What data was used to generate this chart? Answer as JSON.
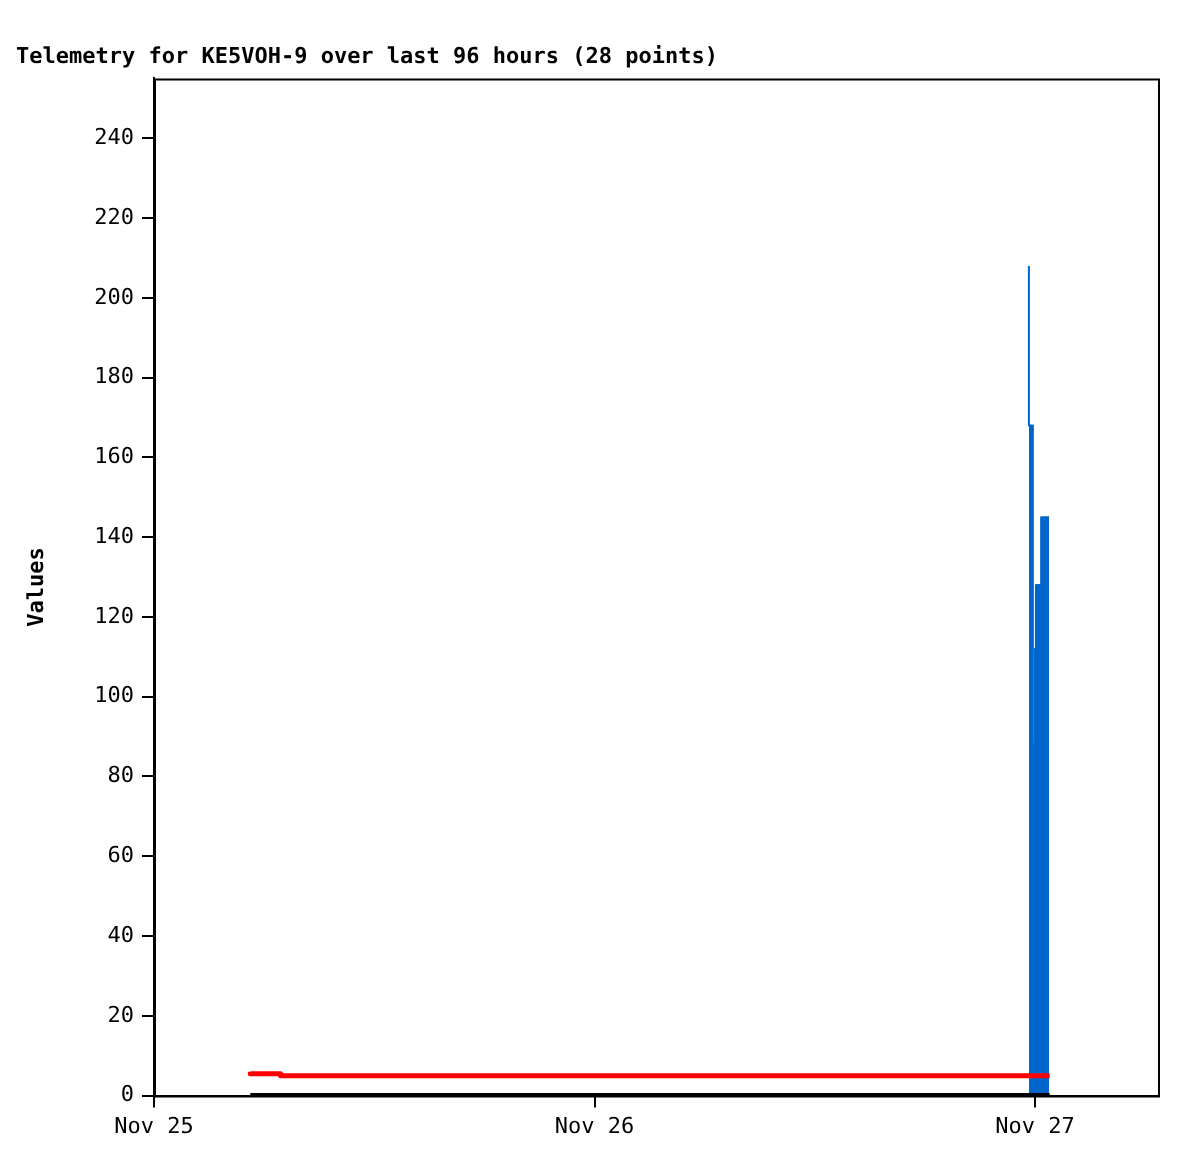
{
  "chart_data": {
    "type": "line",
    "title": "Telemetry for KE5VOH-9 over last 96 hours (28 points)",
    "ylabel": "Values",
    "xlim": [
      "--11-25T00:00",
      "--11-27T06:42"
    ],
    "xticks": [
      {
        "value": "--11-25",
        "label": "Nov 25"
      },
      {
        "value": "--11-26",
        "label": "Nov 26"
      },
      {
        "value": "--11-27",
        "label": "Nov 27"
      }
    ],
    "ylim": [
      0,
      255
    ],
    "yticks": [
      0,
      20,
      40,
      60,
      80,
      100,
      120,
      140,
      160,
      180,
      200,
      220,
      240
    ],
    "grid": false,
    "legend": false,
    "marker": "none",
    "series": [
      {
        "type": "step",
        "color": "#ff0000",
        "x": [
          "--11-25T05:15",
          "--11-25T06:54",
          "--11-25T09:45",
          "--11-27T00:48"
        ],
        "values": [
          6,
          5.5,
          5,
          5
        ]
      },
      {
        "type": "line",
        "color": "#000000",
        "x": [
          "--11-25T05:15",
          "--11-27T00:48"
        ],
        "values": [
          0,
          0
        ]
      },
      {
        "type": "area",
        "color": "#0066cc",
        "x": [
          "--11-26T23:40",
          "--11-26T23:53",
          "--11-27T00:00",
          "--11-27T00:03",
          "--11-27T00:20",
          "--11-27T00:33",
          "--11-27T00:46"
        ],
        "values": [
          208,
          168,
          88,
          112,
          128,
          145,
          145
        ]
      }
    ]
  }
}
